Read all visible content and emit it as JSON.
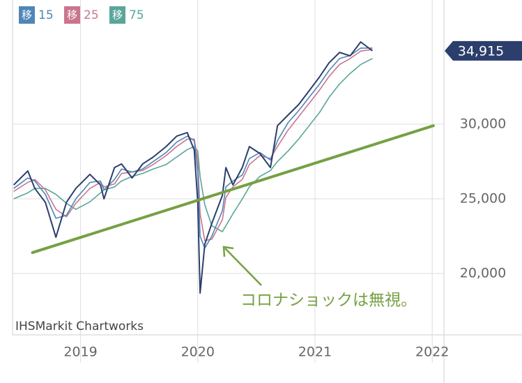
{
  "chart_data": {
    "type": "line",
    "x": [
      2018.43,
      2018.55,
      2018.61,
      2018.7,
      2018.79,
      2018.88,
      2018.96,
      2019.08,
      2019.17,
      2019.2,
      2019.29,
      2019.35,
      2019.44,
      2019.53,
      2019.62,
      2019.73,
      2019.82,
      2019.91,
      2019.97,
      2020.0,
      2020.02,
      2020.06,
      2020.12,
      2020.21,
      2020.24,
      2020.3,
      2020.38,
      2020.44,
      2020.53,
      2020.62,
      2020.68,
      2020.77,
      2020.86,
      2020.95,
      2021.04,
      2021.12,
      2021.21,
      2021.3,
      2021.39,
      2021.49
    ],
    "price": {
      "color": "#2c3e6b",
      "values": [
        25935,
        26870,
        25700,
        24770,
        22430,
        24770,
        25700,
        26640,
        25935,
        25000,
        27100,
        27340,
        26400,
        27340,
        27800,
        28500,
        29200,
        29440,
        28270,
        24770,
        18690,
        21960,
        23360,
        25230,
        27100,
        25935,
        27100,
        28500,
        28040,
        27100,
        29900,
        30610,
        31310,
        32240,
        33180,
        34110,
        34810,
        34580,
        35510,
        34915
      ]
    },
    "legend_mark": "移",
    "series": [
      {
        "name": "15",
        "color": "#4f86b8",
        "values": [
          25700,
          26400,
          26200,
          25300,
          23700,
          23900,
          25000,
          26100,
          26200,
          25600,
          26300,
          27000,
          26800,
          27000,
          27500,
          28100,
          28800,
          29200,
          28900,
          26800,
          22500,
          21700,
          22500,
          24200,
          25800,
          26200,
          26600,
          27700,
          28100,
          27600,
          28900,
          30100,
          30900,
          31800,
          32700,
          33600,
          34400,
          34600,
          35100,
          35100
        ]
      },
      {
        "name": "25",
        "color": "#c9768c",
        "values": [
          25500,
          26100,
          26300,
          25600,
          24300,
          23800,
          24700,
          25700,
          26100,
          25800,
          26000,
          26700,
          26800,
          26900,
          27300,
          27900,
          28500,
          29000,
          29000,
          27600,
          24000,
          22200,
          22300,
          23600,
          25100,
          25800,
          26300,
          27300,
          27900,
          27700,
          28500,
          29600,
          30500,
          31400,
          32300,
          33200,
          34000,
          34400,
          34900,
          35000
        ]
      },
      {
        "name": "75",
        "color": "#5aa59a",
        "values": [
          25000,
          25400,
          25700,
          25700,
          25300,
          24700,
          24300,
          24800,
          25400,
          25600,
          25800,
          26200,
          26500,
          26700,
          27000,
          27300,
          27800,
          28300,
          28500,
          28200,
          26500,
          24600,
          23200,
          22800,
          23200,
          24000,
          25000,
          25800,
          26500,
          26900,
          27500,
          28200,
          29000,
          29900,
          30800,
          31800,
          32700,
          33400,
          34000,
          34400
        ]
      }
    ],
    "last_value": {
      "value": 34915,
      "label": "34,915"
    },
    "trend_line": {
      "color": "#76a043",
      "x": [
        2018.59,
        2022.01
      ],
      "y": [
        21400,
        29900
      ]
    },
    "annotation": "コロナショックは無視。",
    "watermark": "IHSMarkit Chartworks",
    "xlim": [
      2018.42,
      2022.1
    ],
    "xticks": [
      2019,
      2020,
      2021,
      2022
    ],
    "ylim": [
      15890,
      38320
    ],
    "yticks": [
      {
        "value": 20000,
        "label": "20,000"
      },
      {
        "value": 25000,
        "label": "25,000"
      },
      {
        "value": 30000,
        "label": "30,000"
      }
    ],
    "grid": true
  }
}
